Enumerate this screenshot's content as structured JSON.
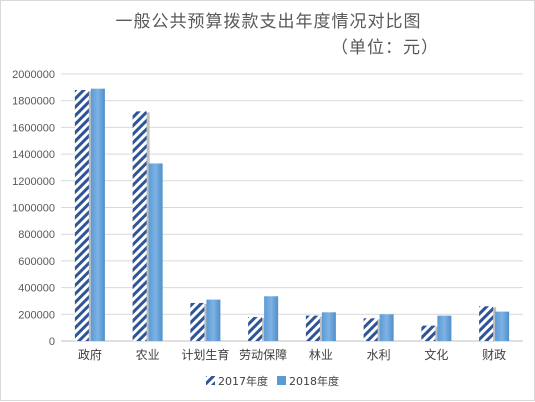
{
  "chart_data": {
    "type": "bar",
    "title": "一般公共预算拨款支出年度情况对比图",
    "subtitle": "（单位：元）",
    "categories": [
      "政府",
      "农业",
      "计划生育",
      "劳动保障",
      "林业",
      "水利",
      "文化",
      "财政"
    ],
    "series": [
      {
        "name": "2017年度",
        "values": [
          1880000,
          1720000,
          285000,
          180000,
          190000,
          170000,
          115000,
          260000
        ],
        "style": "diagonal-hatch",
        "color": "#4472c4"
      },
      {
        "name": "2018年度",
        "values": [
          1890000,
          1330000,
          310000,
          335000,
          215000,
          200000,
          190000,
          220000
        ],
        "style": "solid",
        "color": "#5b9bd5"
      }
    ],
    "ylim": [
      0,
      2000000
    ],
    "yticks": [
      0,
      200000,
      400000,
      600000,
      800000,
      1000000,
      1200000,
      1400000,
      1600000,
      1800000,
      2000000
    ],
    "grid": true,
    "legend_position": "bottom"
  }
}
